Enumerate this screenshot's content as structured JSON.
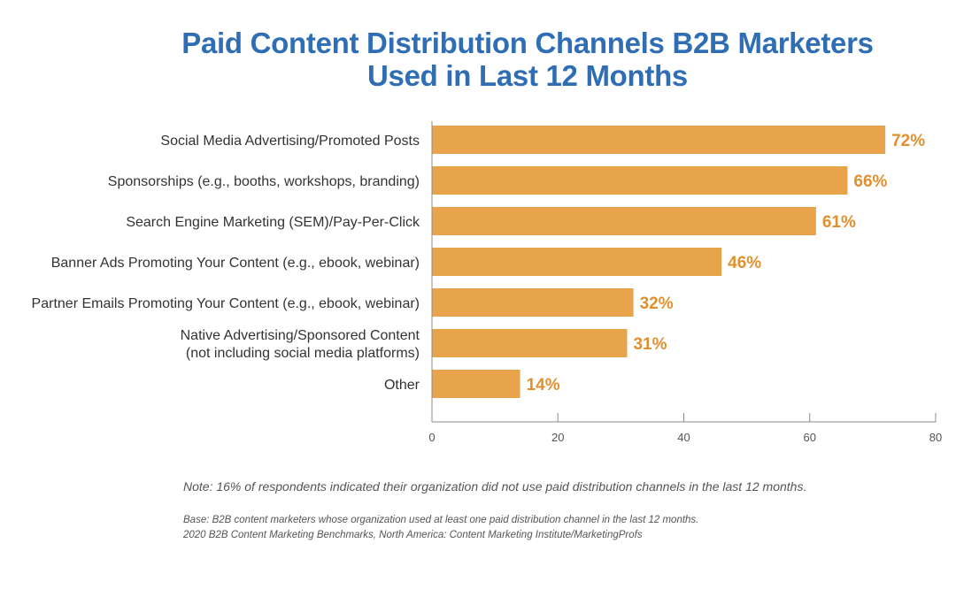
{
  "title_lines": [
    "Paid Content Distribution Channels B2B Marketers",
    "Used in Last 12 Months"
  ],
  "colors": {
    "bar": "#e8a44a",
    "value_label": "#e0902e",
    "title": "#2f6db5",
    "axis": "#8a8a8a",
    "category_text": "#333333"
  },
  "chart_data": {
    "type": "bar",
    "orientation": "horizontal",
    "title": "Paid Content Distribution Channels B2B Marketers Used in Last 12 Months",
    "categories": [
      [
        "Social Media Advertising/Promoted Posts"
      ],
      [
        "Sponsorships (e.g., booths, workshops, branding)"
      ],
      [
        "Search Engine Marketing (SEM)/Pay-Per-Click"
      ],
      [
        "Banner Ads Promoting Your Content (e.g., ebook, webinar)"
      ],
      [
        "Partner Emails Promoting Your Content (e.g., ebook, webinar)"
      ],
      [
        "Native Advertising/Sponsored Content",
        "(not including social media platforms)"
      ],
      [
        "Other"
      ]
    ],
    "values": [
      72,
      66,
      61,
      46,
      32,
      31,
      14
    ],
    "value_labels": [
      "72%",
      "66%",
      "61%",
      "46%",
      "32%",
      "31%",
      "14%"
    ],
    "xlim": [
      0,
      80
    ],
    "xticks": [
      0,
      20,
      40,
      60,
      80
    ],
    "xlabel": "",
    "ylabel": "",
    "grid": false,
    "legend": "none"
  },
  "footnotes": {
    "note": "Note: 16% of respondents indicated their organization did not use paid distribution channels in the last 12 months.",
    "base": "Base: B2B content marketers whose organization used at least one paid distribution channel in the last 12 months.",
    "source": "2020 B2B Content Marketing Benchmarks, North America: Content Marketing Institute/MarketingProfs"
  }
}
